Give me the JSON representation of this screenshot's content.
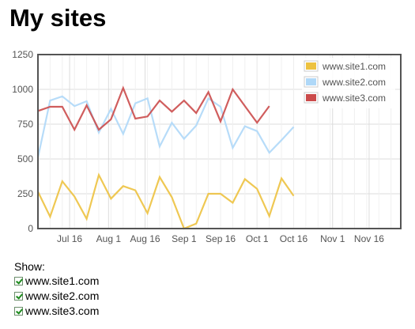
{
  "page": {
    "title": "My sites"
  },
  "controls": {
    "show_label": "Show:",
    "options": [
      {
        "label": "www.site1.com",
        "checked": true
      },
      {
        "label": "www.site2.com",
        "checked": true
      },
      {
        "label": "www.site3.com",
        "checked": true
      }
    ]
  },
  "chart_data": {
    "type": "line",
    "title": "",
    "xlabel": "",
    "ylabel": "",
    "x_axis": "date",
    "x_range": [
      "2012-07-03",
      "2012-11-29"
    ],
    "ylim": [
      0,
      1250
    ],
    "y_ticks": [
      0,
      250,
      500,
      750,
      1000,
      1250
    ],
    "x_ticks": [
      {
        "date": "2012-07-16",
        "label": "Jul 16"
      },
      {
        "date": "2012-08-01",
        "label": "Aug 1"
      },
      {
        "date": "2012-08-16",
        "label": "Aug 16"
      },
      {
        "date": "2012-09-01",
        "label": "Sep 1"
      },
      {
        "date": "2012-09-16",
        "label": "Sep 16"
      },
      {
        "date": "2012-10-01",
        "label": "Oct 1"
      },
      {
        "date": "2012-10-16",
        "label": "Oct 16"
      },
      {
        "date": "2012-11-01",
        "label": "Nov 1"
      },
      {
        "date": "2012-11-16",
        "label": "Nov 16"
      }
    ],
    "grid": true,
    "legend_position": "top-right",
    "x": [
      "2012-07-03",
      "2012-07-08",
      "2012-07-13",
      "2012-07-18",
      "2012-07-23",
      "2012-07-28",
      "2012-08-02",
      "2012-08-07",
      "2012-08-12",
      "2012-08-17",
      "2012-08-22",
      "2012-08-27",
      "2012-09-01",
      "2012-09-06",
      "2012-09-11",
      "2012-09-16",
      "2012-09-21",
      "2012-09-26",
      "2012-10-01",
      "2012-10-06",
      "2012-10-11",
      "2012-10-16",
      "2012-10-21",
      "2012-10-26",
      "2012-10-31",
      "2012-11-05",
      "2012-11-10",
      "2012-11-15",
      "2012-11-20",
      "2012-11-25",
      "2012-11-29"
    ],
    "series": [
      {
        "name": "www.site1.com",
        "color": "#edc240",
        "values": [
          265,
          85,
          340,
          230,
          70,
          385,
          215,
          305,
          275,
          110,
          370,
          225,
          0,
          35,
          250,
          250,
          185,
          355,
          285,
          90,
          360,
          235,
          null,
          null,
          null,
          null,
          null,
          null,
          null,
          null,
          null
        ]
      },
      {
        "name": "www.site2.com",
        "color": "#afd8f8",
        "values": [
          510,
          920,
          950,
          880,
          915,
          690,
          860,
          680,
          900,
          935,
          590,
          760,
          645,
          740,
          935,
          875,
          580,
          735,
          700,
          545,
          635,
          730,
          null,
          null,
          null,
          null,
          null,
          null,
          null,
          null,
          null
        ]
      },
      {
        "name": "www.site3.com",
        "color": "#cb4b4b",
        "values": [
          845,
          875,
          875,
          710,
          885,
          710,
          785,
          1010,
          790,
          805,
          920,
          840,
          920,
          830,
          980,
          770,
          1000,
          880,
          760,
          880,
          null,
          null,
          null,
          null,
          null,
          null,
          null,
          null,
          null,
          null,
          null
        ]
      }
    ]
  }
}
